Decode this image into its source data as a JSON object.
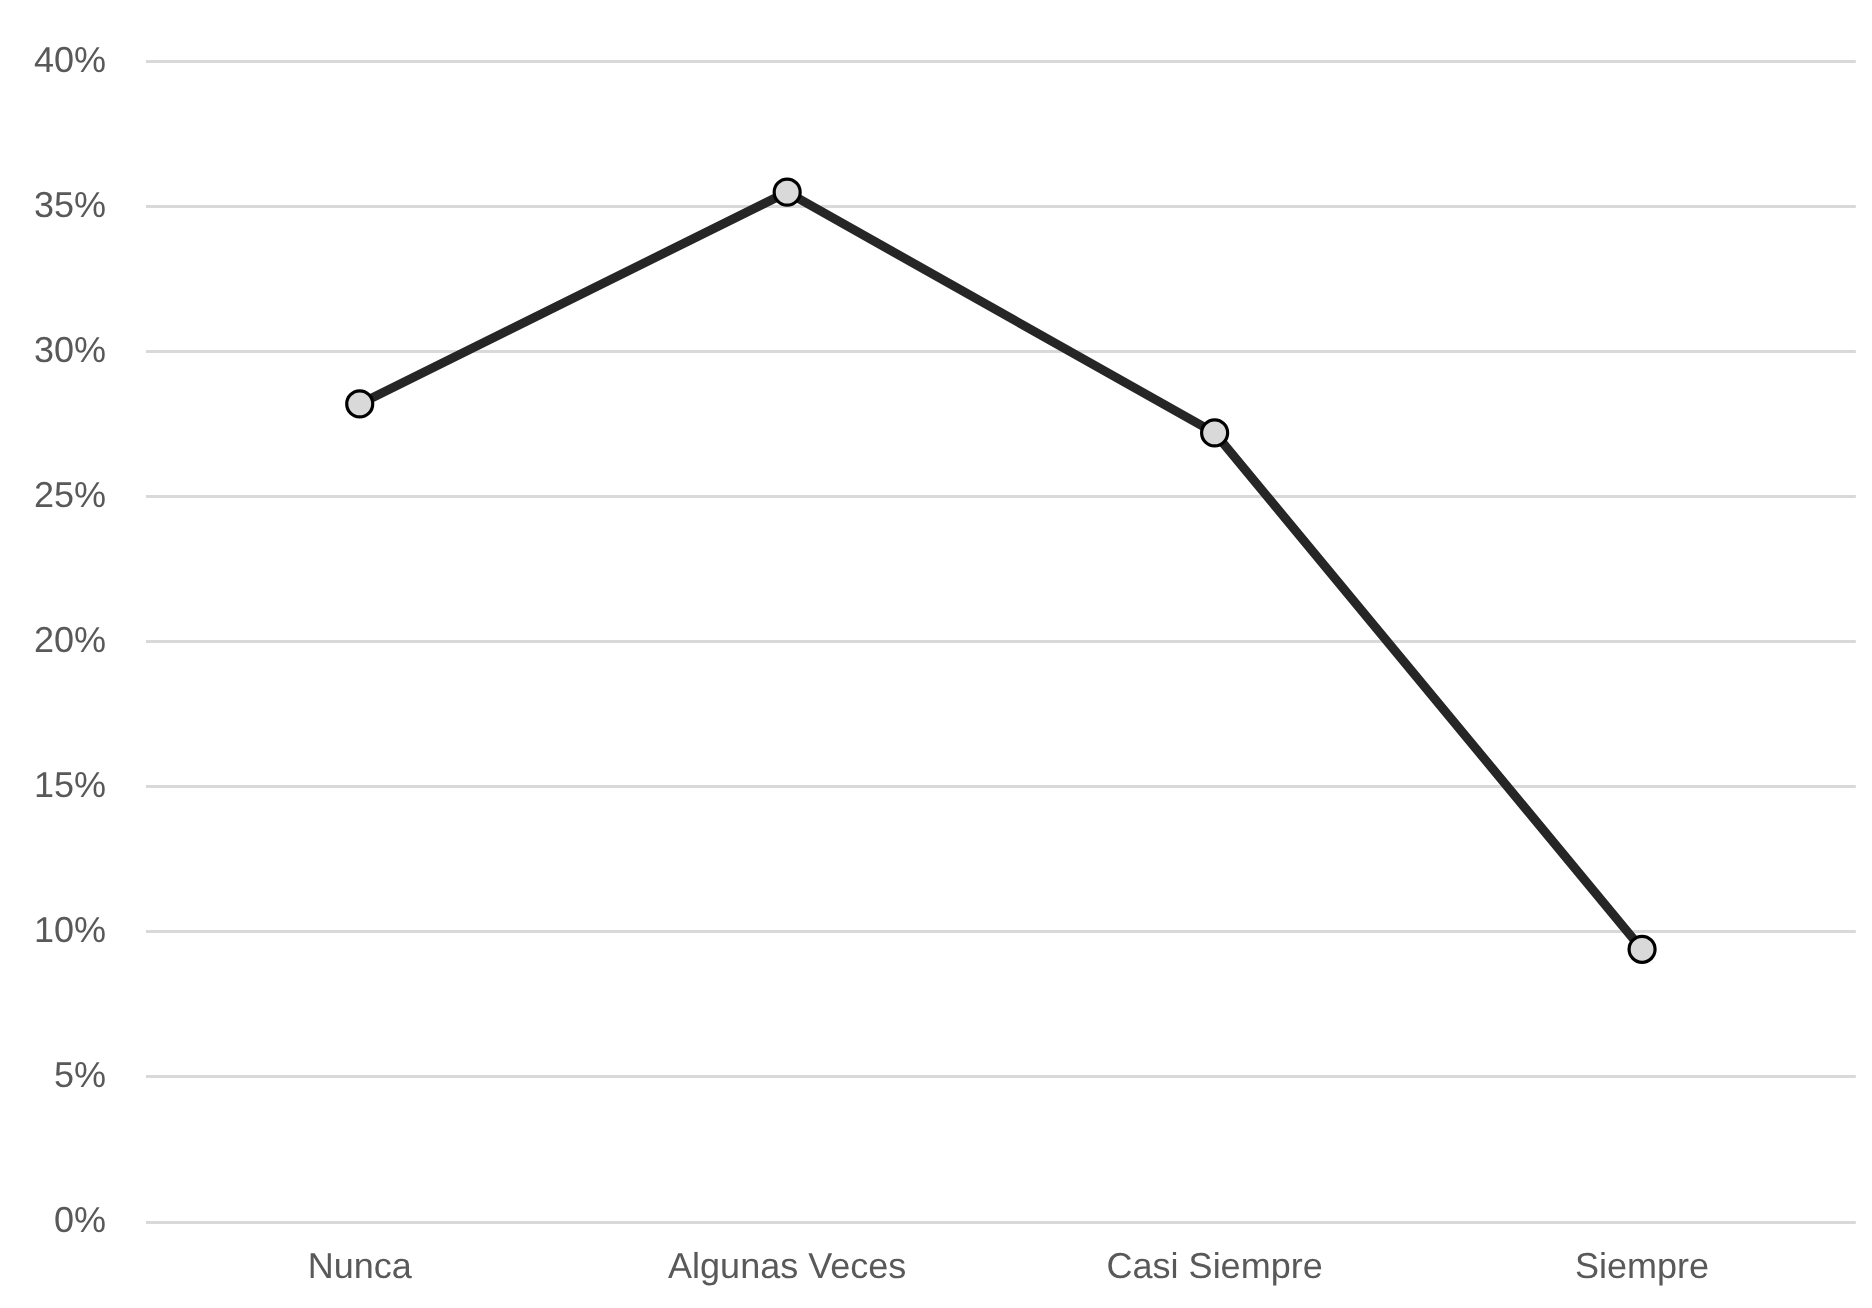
{
  "chart_data": {
    "type": "line",
    "categories": [
      "Nunca",
      "Algunas Veces",
      "Casi Siempre",
      "Siempre"
    ],
    "series": [
      {
        "values": [
          28.2,
          35.5,
          27.2,
          9.4
        ],
        "color": "#262626"
      }
    ],
    "ylim": [
      0,
      40
    ],
    "yticks": [
      {
        "value": 0,
        "label": "0%"
      },
      {
        "value": 5,
        "label": "5%"
      },
      {
        "value": 10,
        "label": "10%"
      },
      {
        "value": 15,
        "label": "15%"
      },
      {
        "value": 20,
        "label": "20%"
      },
      {
        "value": 25,
        "label": "25%"
      },
      {
        "value": 30,
        "label": "30%"
      },
      {
        "value": 35,
        "label": "35%"
      },
      {
        "value": 40,
        "label": "40%"
      }
    ],
    "grid": "y",
    "legend": false,
    "marker": "circle",
    "line_style": "solid"
  }
}
